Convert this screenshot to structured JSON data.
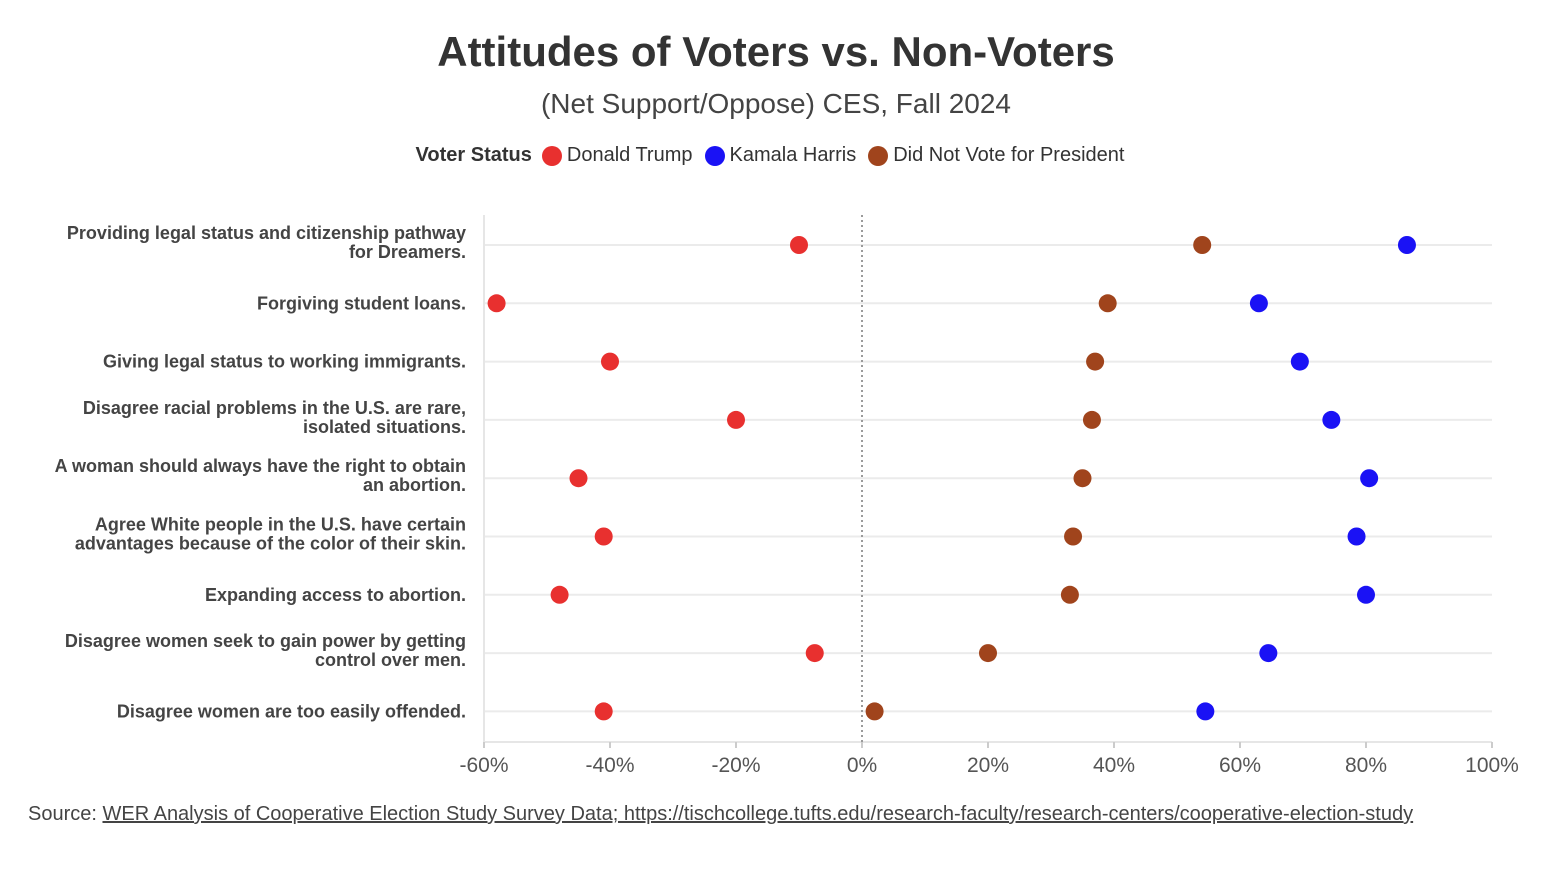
{
  "header": {
    "title": "Attitudes of Voters vs. Non-Voters",
    "subtitle": "(Net Support/Oppose) CES, Fall 2024"
  },
  "legend": {
    "title": "Voter Status",
    "items": [
      {
        "label": "Donald Trump",
        "color": "#e8302f"
      },
      {
        "label": "Kamala Harris",
        "color": "#1a12f5"
      },
      {
        "label": "Did Not Vote for President",
        "color": "#a0441c"
      }
    ]
  },
  "source": {
    "prefix": "Source: ",
    "link_text": "WER Analysis of Cooperative Election Study Survey Data; https://tischcollege.tufts.edu/research-faculty/research-centers/cooperative-election-study"
  },
  "chart_data": {
    "type": "scatter",
    "title": "Attitudes of Voters vs. Non-Voters",
    "subtitle": "(Net Support/Oppose) CES, Fall 2024",
    "xlabel": "",
    "ylabel": "",
    "xlim": [
      -60,
      100
    ],
    "x_ticks": [
      -60,
      -40,
      -20,
      0,
      20,
      40,
      60,
      80,
      100
    ],
    "x_tick_labels": [
      "-60%",
      "-40%",
      "-20%",
      "0%",
      "20%",
      "40%",
      "60%",
      "80%",
      "100%"
    ],
    "reference_line": 0,
    "grid": "horizontal",
    "legend_position": "top",
    "categories": [
      [
        "Providing legal status and citizenship pathway",
        "for Dreamers."
      ],
      [
        "Forgiving student loans."
      ],
      [
        "Giving legal status to working immigrants."
      ],
      [
        "Disagree racial problems in the U.S. are rare,",
        "isolated situations."
      ],
      [
        "A woman should always have the right to obtain",
        "an abortion."
      ],
      [
        "Agree White people in the U.S. have certain",
        "advantages because of the color of their skin."
      ],
      [
        "Expanding access to abortion."
      ],
      [
        "Disagree women seek to gain power by getting",
        "control over men."
      ],
      [
        "Disagree women are too easily offended."
      ]
    ],
    "series": [
      {
        "name": "Donald Trump",
        "color": "#e8302f",
        "values": [
          -10,
          -58,
          -40,
          -20,
          -45,
          -41,
          -48,
          -7.5,
          -41
        ]
      },
      {
        "name": "Kamala Harris",
        "color": "#1a12f5",
        "values": [
          86.5,
          63,
          69.5,
          74.5,
          80.5,
          78.5,
          80,
          64.5,
          54.5
        ]
      },
      {
        "name": "Did Not Vote for President",
        "color": "#a0441c",
        "values": [
          54,
          39,
          37,
          36.5,
          35,
          33.5,
          33,
          20,
          2
        ]
      }
    ]
  }
}
